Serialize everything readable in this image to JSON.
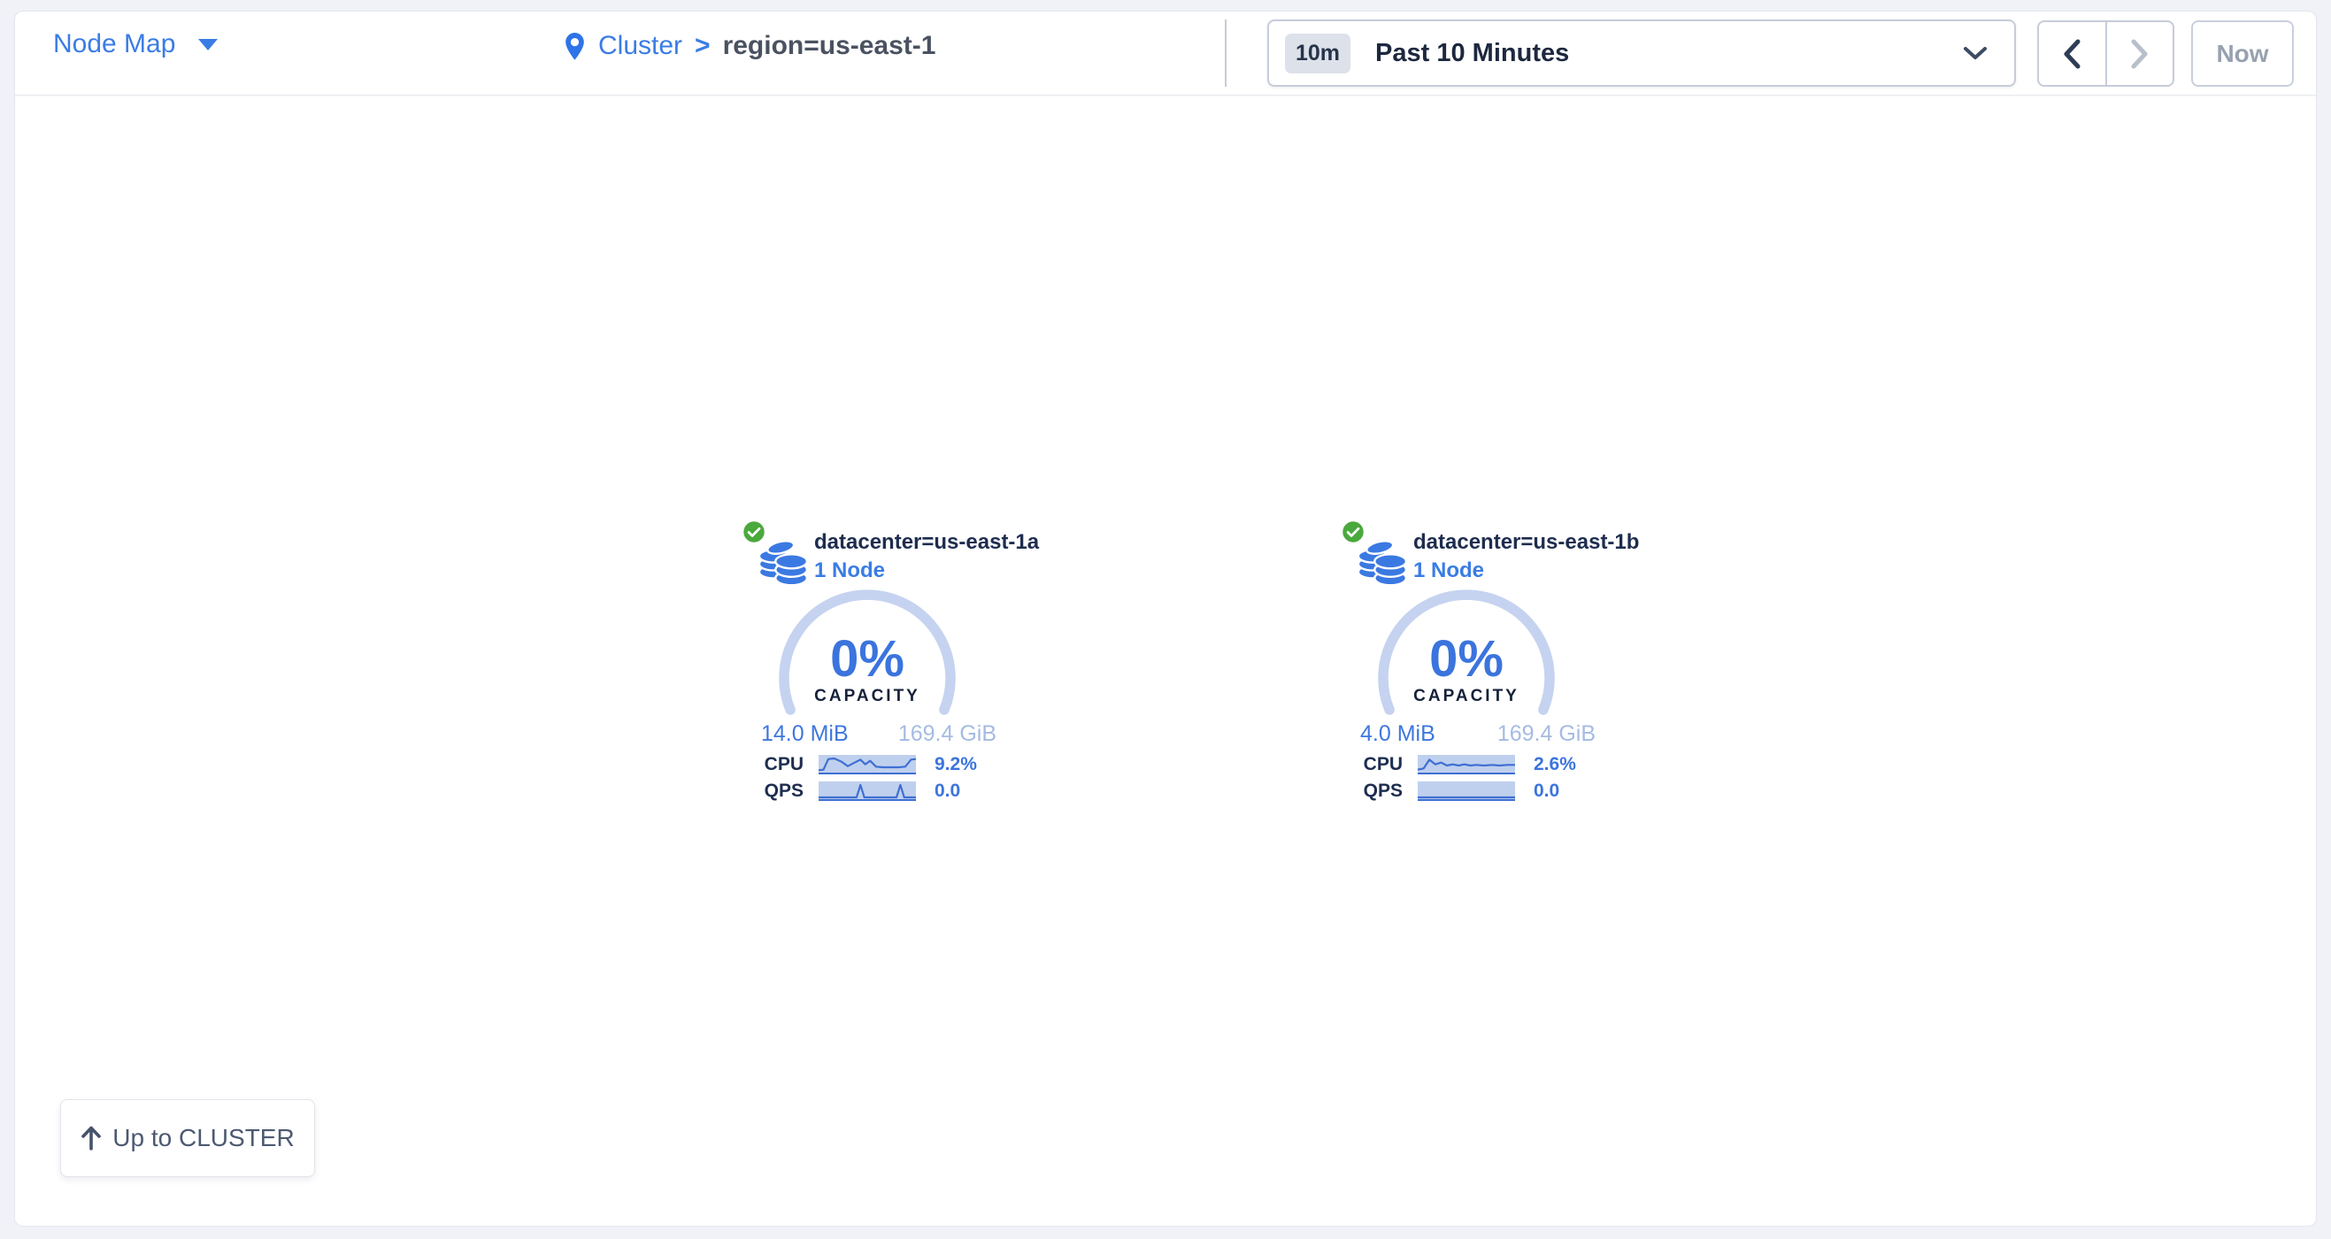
{
  "header": {
    "view_dropdown": {
      "label": "Node Map"
    },
    "breadcrumb": {
      "root": "Cluster",
      "separator": ">",
      "current": "region=us-east-1"
    },
    "time_selector": {
      "badge": "10m",
      "label": "Past 10 Minutes"
    },
    "time_nav": {
      "now_label": "Now"
    }
  },
  "canvas": {
    "up_button_label": "Up to CLUSTER",
    "localities": [
      {
        "name": "datacenter=us-east-1a",
        "node_count_label": "1 Node",
        "status": "healthy",
        "capacity": {
          "percent_label": "0%",
          "percent": 0,
          "caption": "CAPACITY",
          "used": "14.0 MiB",
          "capable": "169.4 GiB"
        },
        "cpu": {
          "label": "CPU",
          "value": "9.2%",
          "spark": [
            [
              0,
              26
            ],
            [
              5,
              25
            ],
            [
              10,
              7
            ],
            [
              16,
              6
            ],
            [
              23,
              11
            ],
            [
              30,
              19
            ],
            [
              37,
              13
            ],
            [
              43,
              8
            ],
            [
              48,
              16
            ],
            [
              53,
              10
            ],
            [
              59,
              20
            ],
            [
              66,
              21
            ],
            [
              74,
              21
            ],
            [
              82,
              21
            ],
            [
              89,
              20
            ],
            [
              95,
              8
            ],
            [
              100,
              7
            ]
          ]
        },
        "qps": {
          "label": "QPS",
          "value": "0.0",
          "spark": [
            [
              0,
              27
            ],
            [
              39,
              27
            ],
            [
              43,
              6
            ],
            [
              47,
              27
            ],
            [
              80,
              27
            ],
            [
              84,
              6
            ],
            [
              88,
              27
            ],
            [
              100,
              27
            ]
          ]
        }
      },
      {
        "name": "datacenter=us-east-1b",
        "node_count_label": "1 Node",
        "status": "healthy",
        "capacity": {
          "percent_label": "0%",
          "percent": 0,
          "caption": "CAPACITY",
          "used": "4.0 MiB",
          "capable": "169.4 GiB"
        },
        "cpu": {
          "label": "CPU",
          "value": "2.6%",
          "spark": [
            [
              0,
              25
            ],
            [
              6,
              23
            ],
            [
              12,
              8
            ],
            [
              18,
              16
            ],
            [
              24,
              13
            ],
            [
              30,
              18
            ],
            [
              36,
              16
            ],
            [
              42,
              18
            ],
            [
              48,
              16
            ],
            [
              54,
              18
            ],
            [
              60,
              17
            ],
            [
              68,
              18
            ],
            [
              76,
              17
            ],
            [
              84,
              18
            ],
            [
              92,
              17
            ],
            [
              100,
              17
            ]
          ]
        },
        "qps": {
          "label": "QPS",
          "value": "0.0",
          "spark": [
            [
              0,
              27
            ],
            [
              100,
              27
            ]
          ]
        }
      }
    ]
  },
  "colors": {
    "accent_blue": "#3a7ce5",
    "dark_navy": "#1e2d4f",
    "ring": "#c5d3f0",
    "spark_bg": "#bfd0ee",
    "spark_line": "#3f6fd2",
    "capable_text": "#a5bbe2",
    "healthy_green": "#4aa93c"
  }
}
